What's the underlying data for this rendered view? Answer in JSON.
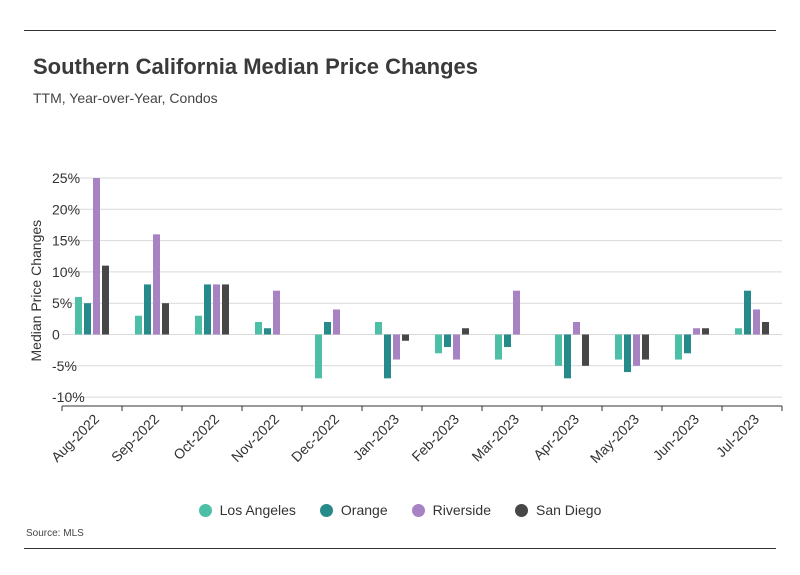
{
  "header": {
    "title": "Southern California Median Price Changes",
    "subtitle": "TTM, Year-over-Year, Condos"
  },
  "footer": {
    "source": "Source: MLS"
  },
  "chart_data": {
    "type": "bar",
    "title": "Southern California Median Price Changes",
    "subtitle": "TTM, Year-over-Year, Condos",
    "xlabel": "",
    "ylabel": "Median Price Changes",
    "ylim": [
      -13,
      25
    ],
    "yticks": [
      25,
      20,
      15,
      10,
      5,
      0,
      -5,
      -10
    ],
    "ytick_labels": [
      "25%",
      "20%",
      "15%",
      "10%",
      "5%",
      "0",
      "-5%",
      "-10%"
    ],
    "grid": true,
    "legend_position": "bottom",
    "categories": [
      "Aug-2022",
      "Sep-2022",
      "Oct-2022",
      "Nov-2022",
      "Dec-2022",
      "Jan-2023",
      "Feb-2023",
      "Mar-2023",
      "Apr-2023",
      "May-2023",
      "Jun-2023",
      "Jul-2023"
    ],
    "series": [
      {
        "name": "Los Angeles",
        "color": "#4dbfa6",
        "values": [
          6,
          3,
          3,
          2,
          -7,
          2,
          -3,
          -4,
          -5,
          -4,
          -4,
          1
        ]
      },
      {
        "name": "Orange",
        "color": "#268a8a",
        "values": [
          5,
          8,
          8,
          1,
          2,
          -7,
          -2,
          -2,
          -7,
          -6,
          -3,
          7
        ]
      },
      {
        "name": "Riverside",
        "color": "#a783c3",
        "values": [
          25,
          16,
          8,
          7,
          4,
          -4,
          -4,
          7,
          2,
          -5,
          1,
          4
        ]
      },
      {
        "name": "San Diego",
        "color": "#474747",
        "values": [
          11,
          5,
          8,
          0,
          0,
          -1,
          1,
          0,
          -5,
          -4,
          1,
          2
        ]
      }
    ]
  }
}
